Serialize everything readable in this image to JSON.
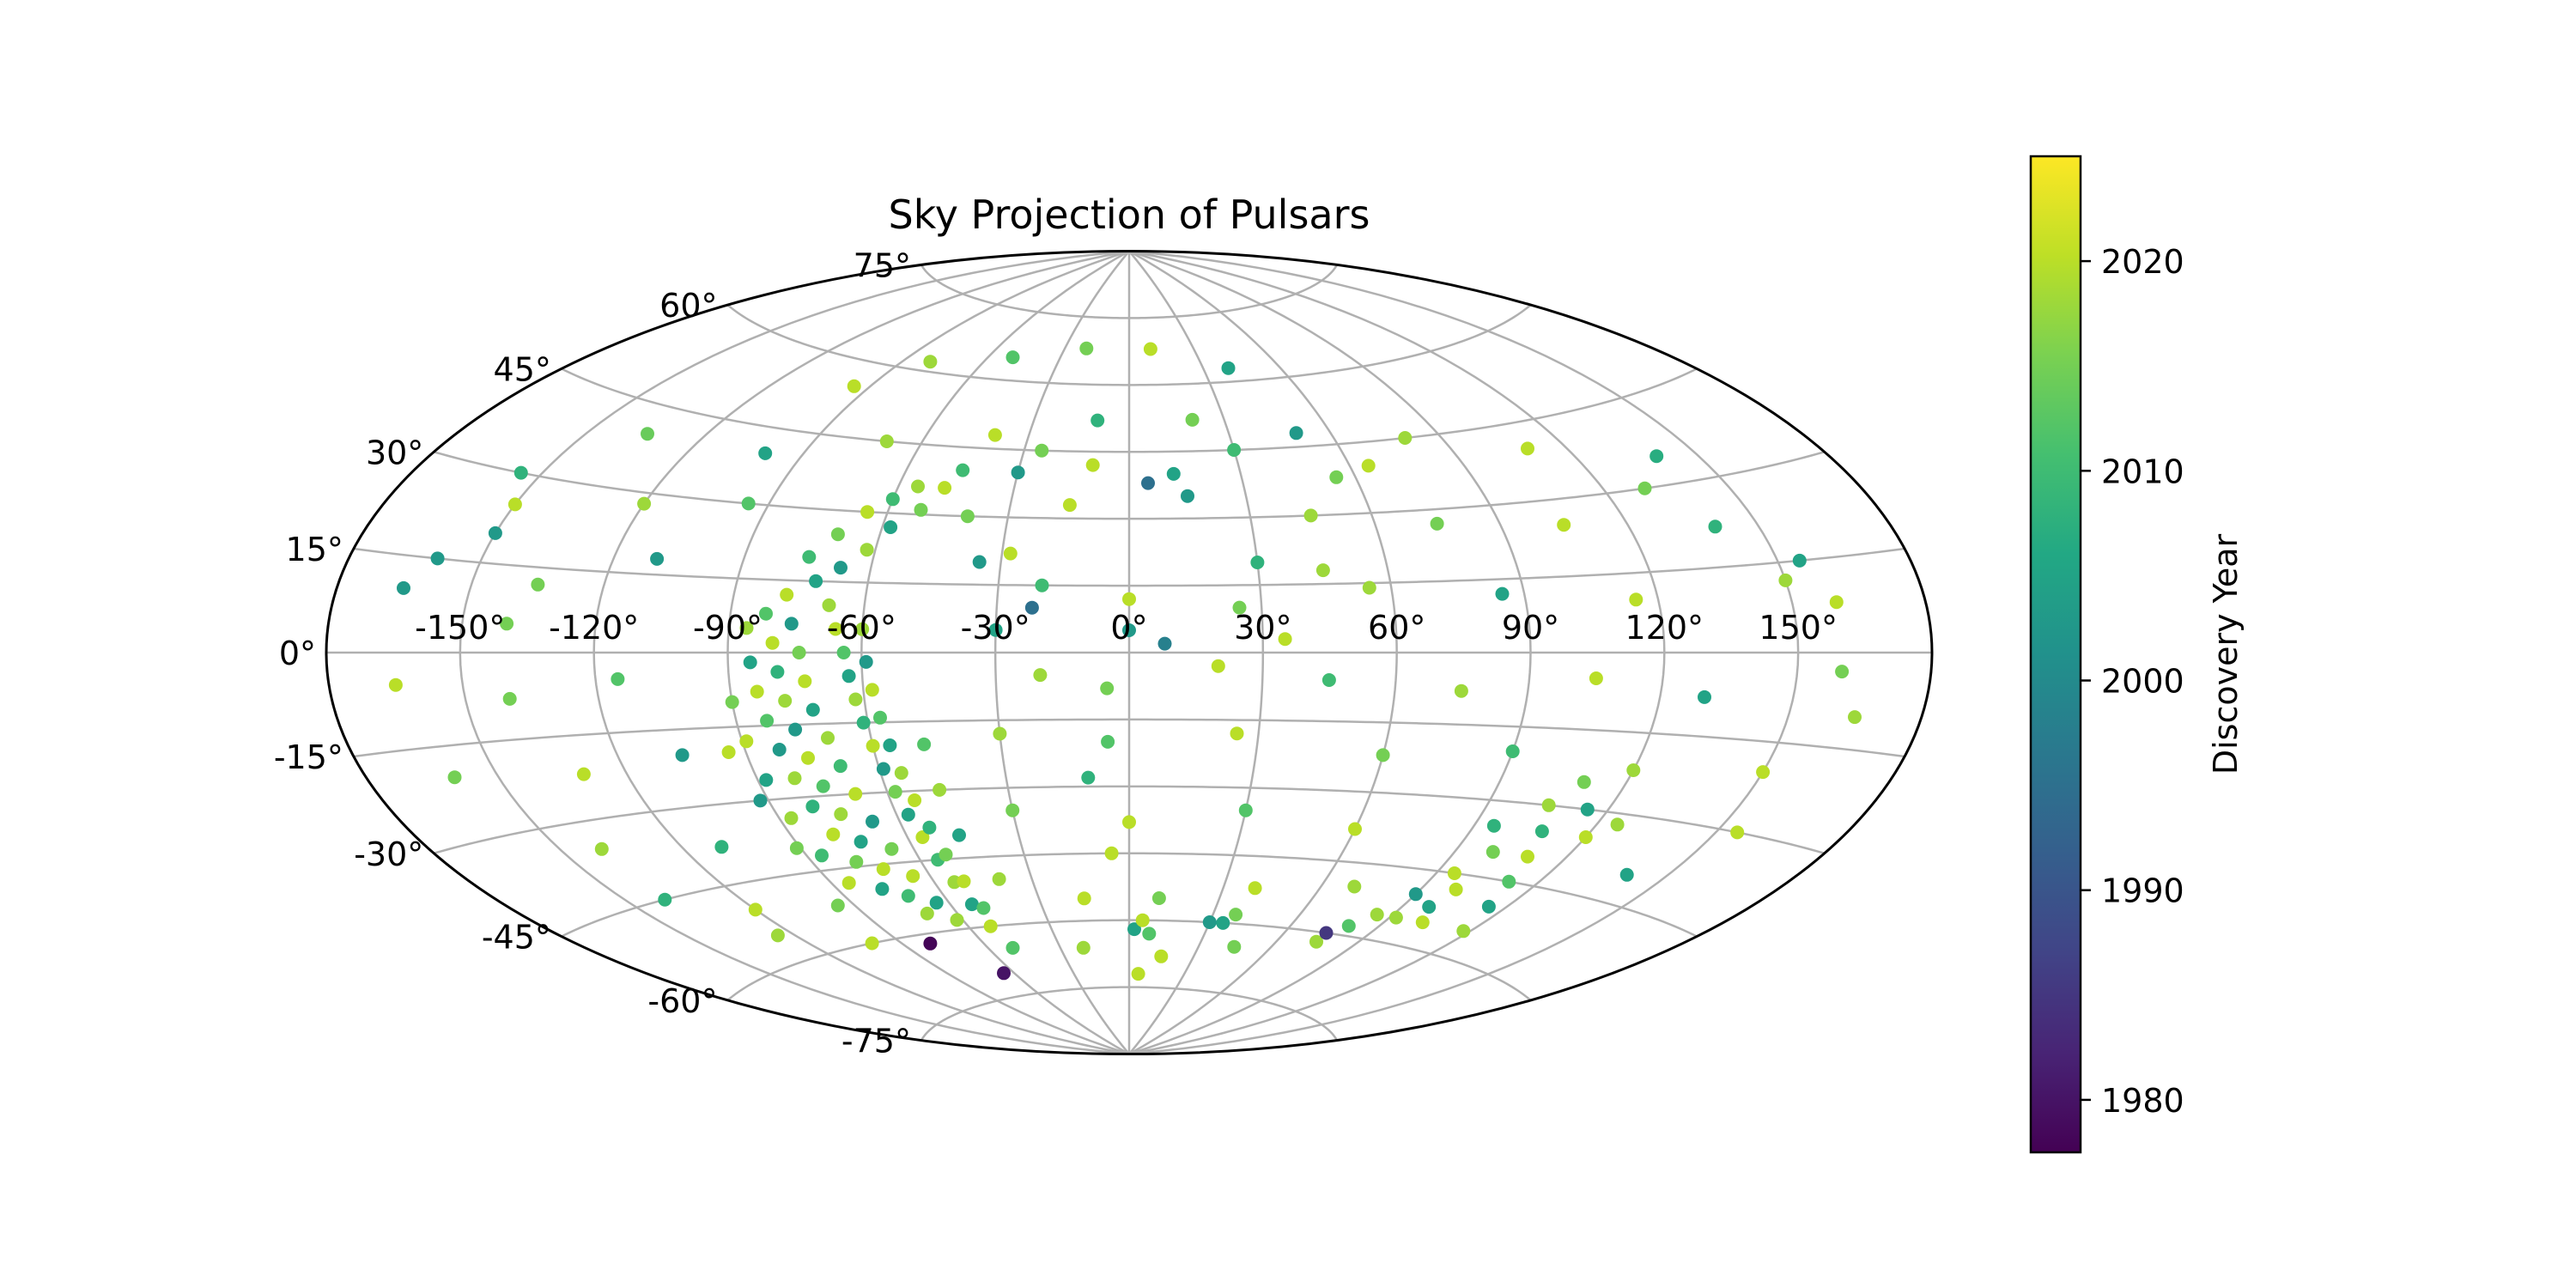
{
  "chart_data": {
    "type": "scatter",
    "projection": "aitoff",
    "title": "Sky Projection of Pulsars",
    "grid": true,
    "longitude_ticks": [
      -150,
      -120,
      -90,
      -60,
      -30,
      0,
      30,
      60,
      90,
      120,
      150
    ],
    "longitude_tick_labels": [
      "-150°",
      "-120°",
      "-90°",
      "-60°",
      "-30°",
      "0°",
      "30°",
      "60°",
      "90°",
      "120°",
      "150°"
    ],
    "latitude_ticks": [
      -75,
      -60,
      -45,
      -30,
      -15,
      0,
      15,
      30,
      45,
      60,
      75
    ],
    "latitude_tick_labels": [
      "-75°",
      "-60°",
      "-45°",
      "-30°",
      "-15°",
      "0°",
      "15°",
      "30°",
      "45°",
      "60°",
      "75°"
    ],
    "colorbar": {
      "label": "Discovery Year",
      "range": [
        1977.5,
        2025
      ],
      "ticks": [
        1980,
        1990,
        2000,
        2010,
        2020
      ],
      "tick_labels": [
        "1980",
        "1990",
        "2000",
        "2010",
        "2020"
      ],
      "colormap": "viridis"
    },
    "points": [
      [
        -95,
        55,
        2020
      ],
      [
        -80,
        62,
        2018
      ],
      [
        -50,
        65,
        2012
      ],
      [
        -20,
        68,
        2015
      ],
      [
        10,
        68,
        2020
      ],
      [
        40,
        63,
        2005
      ],
      [
        -135,
        40,
        2014
      ],
      [
        -100,
        40,
        2005
      ],
      [
        -70,
        45,
        2018
      ],
      [
        -40,
        48,
        2020
      ],
      [
        -10,
        52,
        2008
      ],
      [
        20,
        52,
        2015
      ],
      [
        50,
        48,
        2003
      ],
      [
        80,
        45,
        2018
      ],
      [
        110,
        40,
        2020
      ],
      [
        140,
        35,
        2007
      ],
      [
        -150,
        25,
        2020
      ],
      [
        -120,
        28,
        2018
      ],
      [
        -95,
        30,
        2012
      ],
      [
        -40,
        30,
        2015
      ],
      [
        -15,
        33,
        2020
      ],
      [
        15,
        35,
        2003
      ],
      [
        45,
        30,
        2018
      ],
      [
        75,
        27,
        2015
      ],
      [
        105,
        25,
        2020
      ],
      [
        140,
        22,
        2008
      ],
      [
        -160,
        15,
        2003
      ],
      [
        -135,
        12,
        2015
      ],
      [
        -110,
        18,
        2003
      ],
      [
        -20,
        15,
        2010
      ],
      [
        0,
        12,
        2020
      ],
      [
        25,
        10,
        2015
      ],
      [
        55,
        14,
        2018
      ],
      [
        85,
        12,
        2005
      ],
      [
        115,
        10,
        2020
      ],
      [
        150,
        12,
        2018
      ],
      [
        -165,
        -5,
        2020
      ],
      [
        -140,
        -8,
        2015
      ],
      [
        -115,
        -5,
        2012
      ],
      [
        -20,
        -5,
        2018
      ],
      [
        -5,
        -8,
        2015
      ],
      [
        20,
        -3,
        2020
      ],
      [
        45,
        -6,
        2010
      ],
      [
        75,
        -8,
        2018
      ],
      [
        105,
        -5,
        2020
      ],
      [
        130,
        -8,
        2005
      ],
      [
        160,
        -3,
        2015
      ],
      [
        -160,
        -20,
        2015
      ],
      [
        -130,
        -22,
        2020
      ],
      [
        -105,
        -20,
        2003
      ],
      [
        -30,
        -18,
        2018
      ],
      [
        -5,
        -20,
        2012
      ],
      [
        25,
        -18,
        2020
      ],
      [
        60,
        -22,
        2015
      ],
      [
        90,
        -20,
        2010
      ],
      [
        120,
        -22,
        2018
      ],
      [
        150,
        -20,
        2020
      ],
      [
        -140,
        -35,
        2018
      ],
      [
        -110,
        -38,
        2008
      ],
      [
        -30,
        -35,
        2015
      ],
      [
        0,
        -38,
        2020
      ],
      [
        30,
        -35,
        2012
      ],
      [
        60,
        -38,
        2020
      ],
      [
        95,
        -35,
        2008
      ],
      [
        125,
        -32,
        2018
      ],
      [
        -120,
        -50,
        2020
      ],
      [
        -95,
        -52,
        2015
      ],
      [
        -40,
        -50,
        2018
      ],
      [
        -15,
        -55,
        2020
      ],
      [
        10,
        -55,
        2015
      ],
      [
        40,
        -52,
        2020
      ],
      [
        70,
        -50,
        2018
      ],
      [
        100,
        -48,
        2020
      ],
      [
        -80,
        -62,
        1978
      ],
      [
        -50,
        -65,
        2012
      ],
      [
        -20,
        -66,
        2018
      ],
      [
        15,
        -68,
        2020
      ],
      [
        45,
        -65,
        2015
      ],
      [
        75,
        -62,
        2018
      ],
      [
        -65,
        -70,
        1980
      ],
      [
        5,
        -72,
        2020
      ],
      [
        -75,
        20,
        2010
      ],
      [
        -72,
        15,
        2005
      ],
      [
        -68,
        10,
        2018
      ],
      [
        -66,
        5,
        2020
      ],
      [
        -64,
        0,
        2012
      ],
      [
        -63,
        -5,
        2005
      ],
      [
        -62,
        -10,
        2018
      ],
      [
        -61,
        -15,
        2008
      ],
      [
        -60,
        -20,
        2020
      ],
      [
        -59,
        -25,
        2003
      ],
      [
        -58,
        -30,
        2015
      ],
      [
        -57,
        -35,
        2005
      ],
      [
        -56,
        -40,
        2020
      ],
      [
        -55,
        -45,
        2010
      ],
      [
        -54,
        -50,
        2018
      ],
      [
        -53,
        -55,
        2005
      ],
      [
        -52,
        -60,
        2020
      ],
      [
        -70,
        25,
        2015
      ],
      [
        -65,
        30,
        2020
      ],
      [
        -60,
        33,
        2010
      ],
      [
        -55,
        36,
        2018
      ],
      [
        -78,
        12,
        2020
      ],
      [
        -76,
        6,
        2003
      ],
      [
        -74,
        0,
        2015
      ],
      [
        -73,
        -6,
        2020
      ],
      [
        -72,
        -12,
        2005
      ],
      [
        -70,
        -18,
        2018
      ],
      [
        -69,
        -24,
        2010
      ],
      [
        -68,
        -30,
        2020
      ],
      [
        -67,
        -36,
        2003
      ],
      [
        -66,
        -42,
        2015
      ],
      [
        -65,
        -48,
        2020
      ],
      [
        -64,
        -54,
        2005
      ],
      [
        -62,
        -58,
        2018
      ],
      [
        -82,
        8,
        2012
      ],
      [
        -80,
        2,
        2020
      ],
      [
        -79,
        -4,
        2008
      ],
      [
        -78,
        -10,
        2018
      ],
      [
        -77,
        -16,
        2003
      ],
      [
        -76,
        -22,
        2020
      ],
      [
        -75,
        -28,
        2012
      ],
      [
        -74,
        -34,
        2018
      ],
      [
        -73,
        -40,
        2005
      ],
      [
        -72,
        -46,
        2020
      ],
      [
        -71,
        -52,
        2010
      ],
      [
        -70,
        -56,
        2018
      ],
      [
        -86,
        5,
        2018
      ],
      [
        -85,
        -2,
        2005
      ],
      [
        -84,
        -8,
        2020
      ],
      [
        -83,
        -14,
        2012
      ],
      [
        -82,
        -20,
        2003
      ],
      [
        -81,
        -26,
        2018
      ],
      [
        -80,
        -32,
        2008
      ],
      [
        -79,
        -38,
        2020
      ],
      [
        -78,
        -44,
        2015
      ],
      [
        -77,
        -50,
        2005
      ],
      [
        -67,
        18,
        2003
      ],
      [
        -62,
        22,
        2018
      ],
      [
        -58,
        27,
        2005
      ],
      [
        -52,
        31,
        2015
      ],
      [
        -48,
        36,
        2020
      ],
      [
        -45,
        40,
        2010
      ],
      [
        -60,
        5,
        2018
      ],
      [
        -59,
        -2,
        2003
      ],
      [
        -58,
        -8,
        2020
      ],
      [
        -57,
        -14,
        2012
      ],
      [
        -56,
        -20,
        2005
      ],
      [
        -55,
        -26,
        2018
      ],
      [
        -54,
        -32,
        2020
      ],
      [
        -53,
        -38,
        2008
      ],
      [
        -52,
        -44,
        2015
      ],
      [
        -51,
        -50,
        2020
      ],
      [
        -50,
        -56,
        2012
      ],
      [
        -90,
        -10,
        2015
      ],
      [
        -89,
        -18,
        2020
      ],
      [
        -88,
        -26,
        2005
      ],
      [
        -87,
        -34,
        2018
      ],
      [
        -86,
        -42,
        2010
      ],
      [
        -85,
        -48,
        2020
      ],
      [
        -92,
        -30,
        2003
      ],
      [
        -91,
        -40,
        2015
      ],
      [
        -94,
        -20,
        2020
      ],
      [
        -47,
        -30,
        2018
      ],
      [
        -46,
        -40,
        2005
      ],
      [
        -48,
        -20,
        2012
      ],
      [
        105,
        -30,
        2018
      ],
      [
        108,
        -35,
        2008
      ],
      [
        110,
        -40,
        2020
      ],
      [
        112,
        -45,
        2012
      ],
      [
        115,
        -50,
        2005
      ],
      [
        118,
        -55,
        2018
      ],
      [
        100,
        -40,
        2015
      ],
      [
        95,
        -45,
        2020
      ],
      [
        90,
        -50,
        2003
      ],
      [
        85,
        -55,
        2018
      ],
      [
        80,
        -58,
        2012
      ],
      [
        75,
        -60,
        1985
      ],
      [
        102,
        -55,
        2020
      ],
      [
        98,
        -52,
        2005
      ],
      [
        92,
        -55,
        2018
      ],
      [
        110,
        -25,
        2015
      ],
      [
        115,
        -30,
        2005
      ],
      [
        120,
        -35,
        2020
      ],
      [
        2,
        -62,
        2005
      ],
      [
        5,
        -60,
        2020
      ],
      [
        8,
        -63,
        2012
      ],
      [
        35,
        -60,
        2005
      ],
      [
        38,
        -58,
        2015
      ],
      [
        -30,
        40,
        2003
      ],
      [
        -25,
        45,
        2015
      ],
      [
        -10,
        42,
        2020
      ],
      [
        5,
        38,
        1995
      ],
      [
        12,
        40,
        2005
      ],
      [
        30,
        45,
        2010
      ],
      [
        -35,
        20,
        2003
      ],
      [
        -28,
        22,
        2020
      ],
      [
        -22,
        10,
        1995
      ],
      [
        -30,
        5,
        2005
      ],
      [
        0,
        5,
        2003
      ],
      [
        8,
        2,
        1998
      ],
      [
        -10,
        -28,
        2008
      ],
      [
        -5,
        -45,
        2020
      ],
      [
        30,
        -60,
        2003
      ],
      [
        55,
        38,
        2015
      ],
      [
        65,
        40,
        2020
      ],
      [
        30,
        20,
        2008
      ],
      [
        45,
        18,
        2018
      ],
      [
        35,
        3,
        2020
      ],
      [
        130,
        30,
        2015
      ],
      [
        155,
        15,
        2005
      ],
      [
        160,
        8,
        2020
      ],
      [
        -155,
        30,
        2008
      ],
      [
        -150,
        20,
        2003
      ],
      [
        -140,
        5,
        2015
      ],
      [
        -165,
        10,
        2003
      ],
      [
        165,
        -10,
        2018
      ],
      [
        155,
        -30,
        2020
      ],
      [
        140,
        -40,
        2005
      ],
      [
        -125,
        -55,
        2018
      ],
      [
        -140,
        -45,
        2008
      ],
      [
        -100,
        -60,
        2020
      ]
    ]
  }
}
